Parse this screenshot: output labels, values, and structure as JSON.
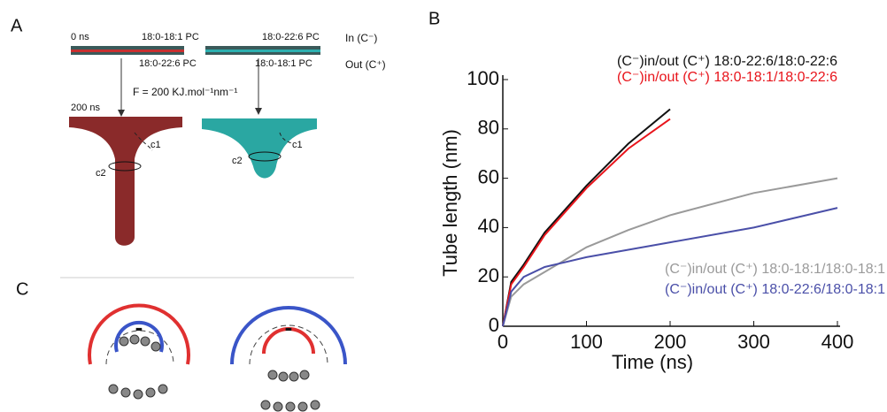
{
  "panels": {
    "a": "A",
    "b": "B",
    "c": "C"
  },
  "panel_a": {
    "time_start": "0 ns",
    "left_top": "18:0-18:1 PC",
    "left_bottom": "18:0-22:6 PC",
    "right_top": "18:0-22:6 PC",
    "right_bottom": "18:0-18:1 PC",
    "in_label": "In (C⁻)",
    "out_label": "Out (C⁺)",
    "force": "F = 200 KJ.mol⁻¹nm⁻¹",
    "time_end": "200 ns",
    "left_c1": "c1",
    "left_c2": "c2",
    "right_c1": "c1",
    "right_c2": "c2"
  },
  "panel_c": {
    "left_sign": "-",
    "right_sign": "-"
  },
  "chart_data": {
    "type": "line",
    "x_label": "Time (ns)",
    "y_label": "Tube length (nm)",
    "x": [
      0,
      10,
      25,
      50,
      100,
      150,
      200,
      300,
      400
    ],
    "series": [
      {
        "name": "(C⁻)in/out (C⁺) 18:0-22:6/18:0-22:6",
        "color": "#111111",
        "values": [
          0,
          18,
          25,
          38,
          57,
          74,
          88,
          null,
          null
        ]
      },
      {
        "name": "(C⁻)in/out (C⁺) 18:0-18:1/18:0-22:6",
        "color": "#e8141b",
        "values": [
          0,
          17,
          24,
          37,
          56,
          72,
          84,
          null,
          null
        ]
      },
      {
        "name": "(C⁻)in/out (C⁺) 18:0-18:1/18:0-18:1",
        "color": "#9a9a9a",
        "values": [
          0,
          12,
          17,
          22,
          32,
          39,
          45,
          54,
          60
        ]
      },
      {
        "name": "(C⁻)in/out (C⁺) 18:0-22:6/18:0-18:1",
        "color": "#4a4fa8",
        "values": [
          0,
          14,
          20,
          24,
          28,
          31,
          34,
          40,
          48
        ]
      }
    ],
    "xlim": [
      0,
      400
    ],
    "xticks": [
      0,
      100,
      200,
      300,
      400
    ],
    "ylim": [
      0,
      100
    ],
    "yticks": [
      0,
      20,
      40,
      60,
      80,
      100
    ]
  }
}
